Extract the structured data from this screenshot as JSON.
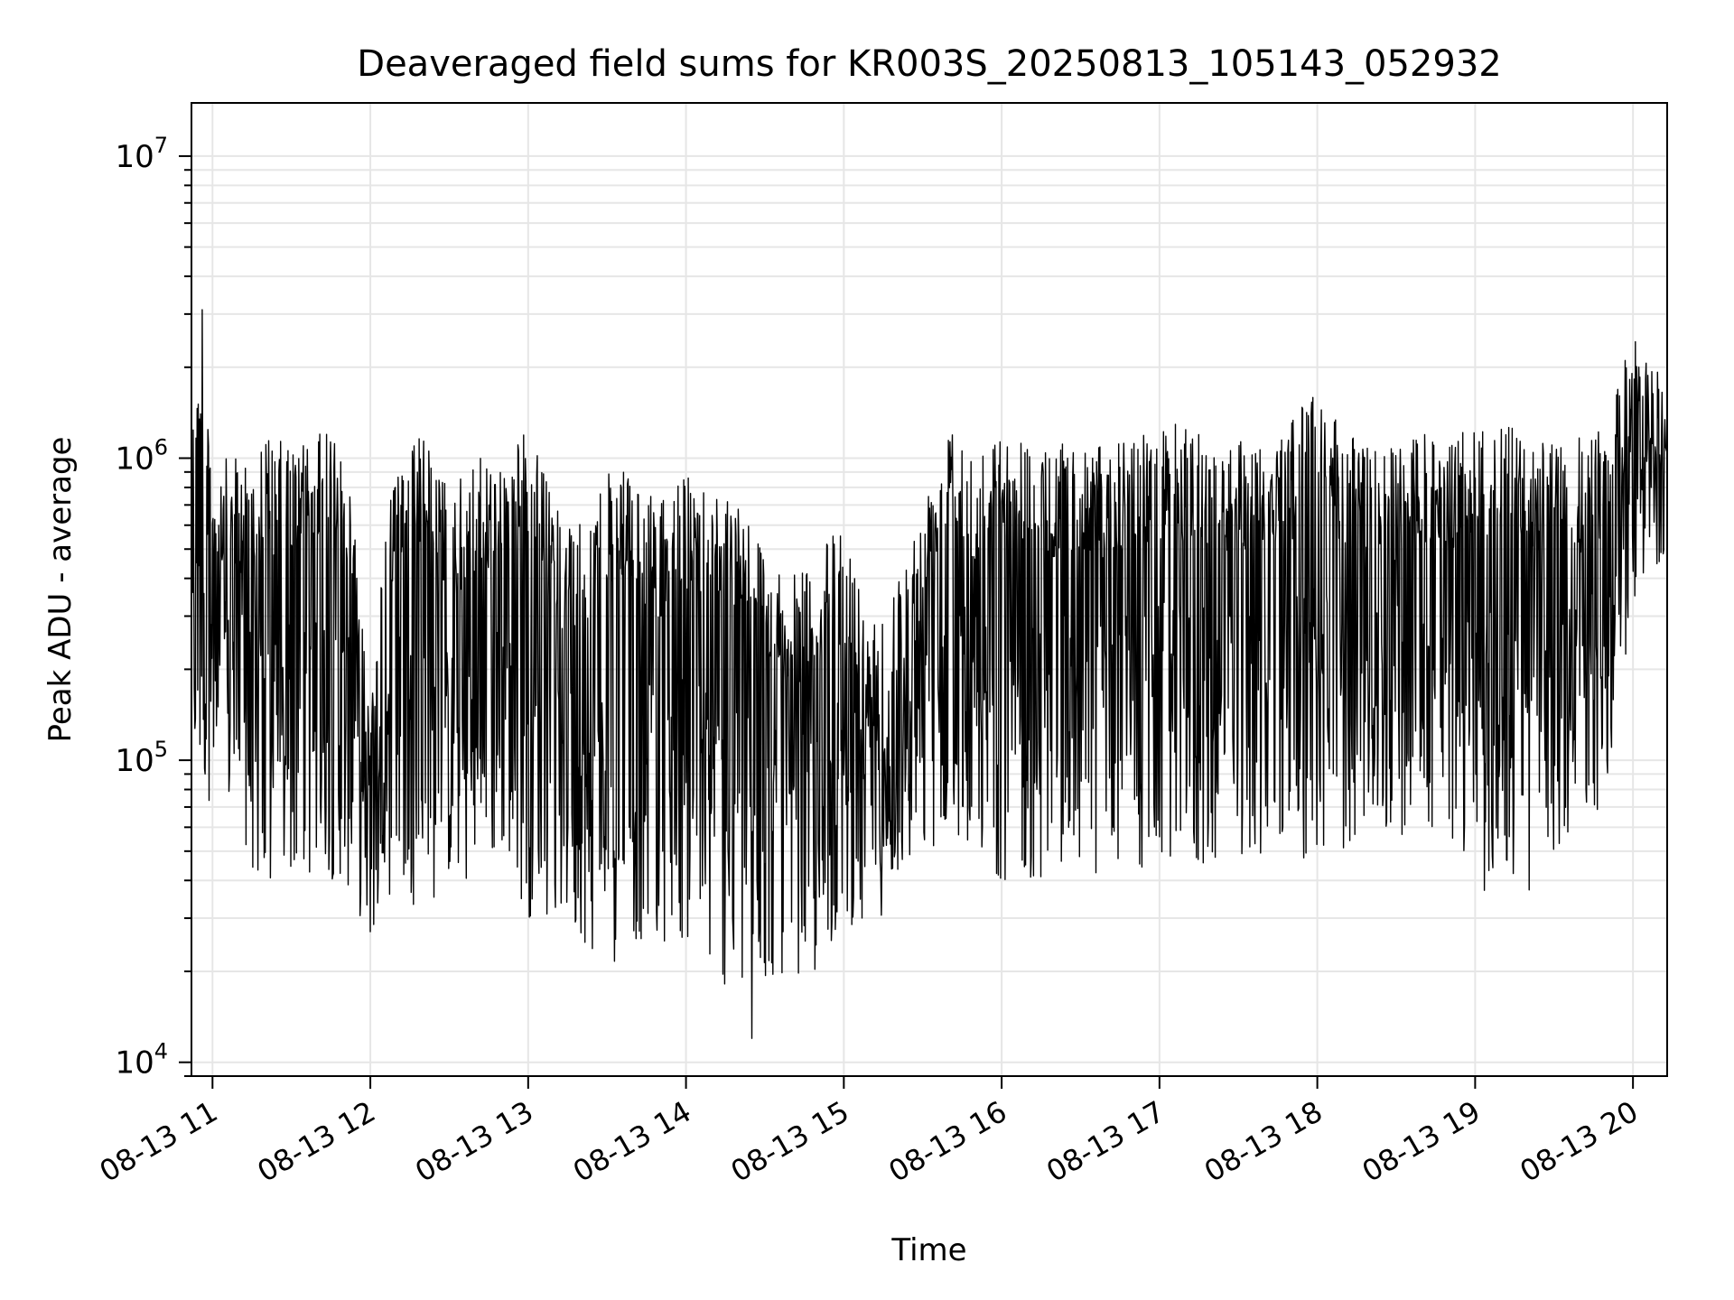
{
  "chart_data": {
    "type": "line",
    "title": "Deaveraged field sums for KR003S_20250813_105143_052932",
    "xlabel": "Time",
    "ylabel": "Peak ADU - average",
    "yscale": "log",
    "ylim": [
      9000,
      15000000
    ],
    "xlim": [
      "2025-08-13 10:52",
      "2025-08-13 20:13"
    ],
    "grid": true,
    "line_color": "#000000",
    "grid_color": "#e6e6e6",
    "x_ticks": [
      "2025-08-13 11:00",
      "2025-08-13 12:00",
      "2025-08-13 13:00",
      "2025-08-13 14:00",
      "2025-08-13 15:00",
      "2025-08-13 16:00",
      "2025-08-13 17:00",
      "2025-08-13 18:00",
      "2025-08-13 19:00",
      "2025-08-13 20:00"
    ],
    "x_tick_labels": [
      "08-13 11",
      "08-13 12",
      "08-13 13",
      "08-13 14",
      "08-13 15",
      "08-13 16",
      "08-13 17",
      "08-13 18",
      "08-13 19",
      "08-13 20"
    ],
    "y_ticks": [
      10000,
      100000,
      1000000,
      10000000
    ],
    "y_tick_labels": [
      {
        "base": "10",
        "exp": "4"
      },
      {
        "base": "10",
        "exp": "5"
      },
      {
        "base": "10",
        "exp": "6"
      },
      {
        "base": "10",
        "exp": "7"
      }
    ],
    "series": [
      {
        "x": [
          "2025-08-13 10:52",
          "2025-08-13 11:00",
          "2025-08-13 11:10",
          "2025-08-13 11:20",
          "2025-08-13 11:30",
          "2025-08-13 11:40",
          "2025-08-13 11:50",
          "2025-08-13 12:00",
          "2025-08-13 12:10",
          "2025-08-13 12:20",
          "2025-08-13 12:30",
          "2025-08-13 12:40",
          "2025-08-13 12:50",
          "2025-08-13 13:00",
          "2025-08-13 13:10",
          "2025-08-13 13:20",
          "2025-08-13 13:30",
          "2025-08-13 13:40",
          "2025-08-13 13:50",
          "2025-08-13 14:00",
          "2025-08-13 14:10",
          "2025-08-13 14:20",
          "2025-08-13 14:30",
          "2025-08-13 14:40",
          "2025-08-13 14:50",
          "2025-08-13 15:00",
          "2025-08-13 15:10",
          "2025-08-13 15:20",
          "2025-08-13 15:30",
          "2025-08-13 15:40",
          "2025-08-13 15:50",
          "2025-08-13 16:00",
          "2025-08-13 16:10",
          "2025-08-13 16:20",
          "2025-08-13 16:30",
          "2025-08-13 16:40",
          "2025-08-13 16:50",
          "2025-08-13 17:00",
          "2025-08-13 17:10",
          "2025-08-13 17:20",
          "2025-08-13 17:30",
          "2025-08-13 17:40",
          "2025-08-13 17:50",
          "2025-08-13 18:00",
          "2025-08-13 18:10",
          "2025-08-13 18:20",
          "2025-08-13 18:30",
          "2025-08-13 18:40",
          "2025-08-13 18:50",
          "2025-08-13 19:00",
          "2025-08-13 19:10",
          "2025-08-13 19:20",
          "2025-08-13 19:30",
          "2025-08-13 19:40",
          "2025-08-13 19:50",
          "2025-08-13 20:00",
          "2025-08-13 20:13"
        ],
        "high": [
          3000000,
          1000000,
          1000000,
          1200000,
          1100000,
          1200000,
          1300000,
          200000,
          1100000,
          1200000,
          800000,
          1000000,
          1000000,
          1300000,
          700000,
          600000,
          900000,
          900000,
          700000,
          900000,
          800000,
          800000,
          500000,
          400000,
          500000,
          600000,
          300000,
          400000,
          700000,
          1600000,
          1100000,
          1200000,
          1200000,
          1100000,
          1200000,
          1100000,
          1200000,
          1300000,
          1300000,
          1200000,
          1200000,
          1200000,
          1300000,
          1900000,
          1200000,
          1200000,
          1100000,
          1200000,
          1200000,
          1300000,
          1300000,
          1200000,
          1100000,
          1200000,
          1300000,
          2600000,
          2000000
        ],
        "low": [
          90000,
          70000,
          60000,
          30000,
          40000,
          40000,
          40000,
          25000,
          40000,
          30000,
          40000,
          35000,
          50000,
          30000,
          30000,
          25000,
          20000,
          25000,
          25000,
          25000,
          20000,
          15000,
          18000,
          20000,
          18000,
          30000,
          25000,
          40000,
          45000,
          60000,
          50000,
          40000,
          40000,
          40000,
          45000,
          40000,
          40000,
          45000,
          40000,
          45000,
          45000,
          50000,
          45000,
          45000,
          50000,
          55000,
          55000,
          60000,
          55000,
          35000,
          40000,
          35000,
          40000,
          65000,
          70000,
          300000,
          500000
        ],
        "min_value": 12000,
        "min_time": "2025-08-13 14:25",
        "max_value": 3100000,
        "max_time": "2025-08-13 10:56"
      }
    ]
  }
}
